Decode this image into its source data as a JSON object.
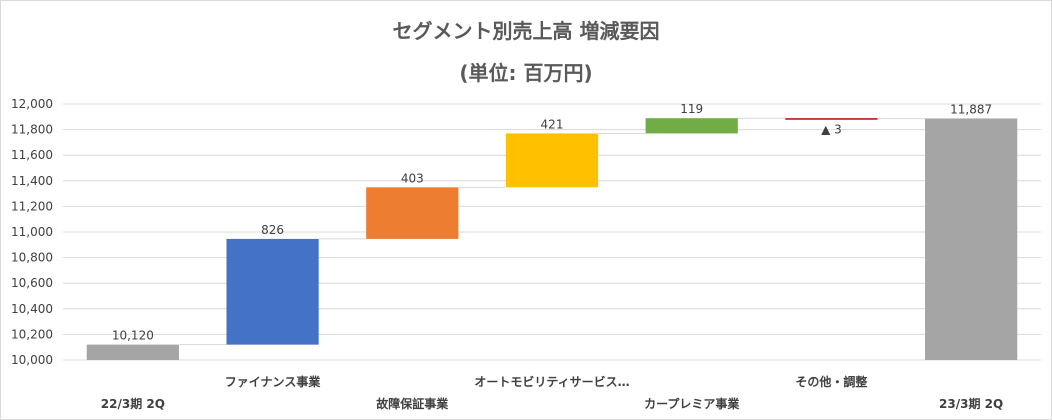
{
  "title_line1": "セグメント別売上高 増減要因",
  "title_line2": "(単位: 百万円)",
  "colors": {
    "total": "#a5a5a5",
    "finance": "#4472c4",
    "warranty": "#ed7d31",
    "automobility": "#ffc000",
    "carpremium": "#70ad47",
    "other": "#c00000",
    "gridline": "#d9d9d9",
    "connector": "#d9d9d9"
  },
  "chart_data": {
    "type": "waterfall",
    "title": "セグメント別売上高 増減要因",
    "subtitle": "(単位: 百万円)",
    "ylim": [
      10000,
      12000
    ],
    "yticks": [
      "10,000",
      "10,200",
      "10,400",
      "10,600",
      "10,800",
      "11,000",
      "11,200",
      "11,400",
      "11,600",
      "11,800",
      "12,000"
    ],
    "ytick_values": [
      10000,
      10200,
      10400,
      10600,
      10800,
      11000,
      11200,
      11400,
      11600,
      11800,
      12000
    ],
    "grid": true,
    "categories": [
      "22/3期 2Q",
      "ファイナンス事業",
      "故障保証事業",
      "オートモビリティサービス…",
      "カープレミア事業",
      "その他・調整",
      "23/3期 2Q"
    ],
    "steps": [
      {
        "category": "22/3期 2Q",
        "kind": "total",
        "value": 10120,
        "label": "10,120",
        "color_key": "total"
      },
      {
        "category": "ファイナンス事業",
        "kind": "delta",
        "value": 826,
        "label": "826",
        "color_key": "finance"
      },
      {
        "category": "故障保証事業",
        "kind": "delta",
        "value": 403,
        "label": "403",
        "color_key": "warranty"
      },
      {
        "category": "オートモビリティサービス…",
        "kind": "delta",
        "value": 421,
        "label": "421",
        "color_key": "automobility"
      },
      {
        "category": "カープレミア事業",
        "kind": "delta",
        "value": 119,
        "label": "119",
        "color_key": "carpremium"
      },
      {
        "category": "その他・調整",
        "kind": "delta",
        "value": -3,
        "label": "▲ 3",
        "color_key": "other"
      },
      {
        "category": "23/3期 2Q",
        "kind": "total",
        "value": 11887,
        "label": "11,887",
        "color_key": "total"
      }
    ]
  }
}
